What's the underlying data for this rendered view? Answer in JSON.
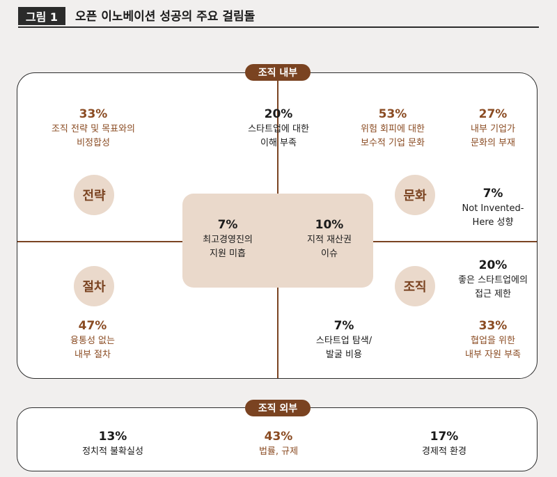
{
  "header": {
    "label": "그림 1",
    "title": "오픈 이노베이션 성공의 주요 걸림돌"
  },
  "inner": {
    "label": "조직 내부",
    "circles": {
      "strategy": "전략",
      "culture": "문화",
      "procedure": "절차",
      "organization": "조직"
    },
    "stats": {
      "strategy_mismatch": {
        "pct": "33%",
        "desc": "조직 전략 및 목표와의\n비정합성"
      },
      "startup_understanding": {
        "pct": "20%",
        "desc": "스타트업에 대한\n이해 부족"
      },
      "risk_avoidance": {
        "pct": "53%",
        "desc": "위험 회피에 대한\n보수적 기업 문화"
      },
      "no_corporate_culture": {
        "pct": "27%",
        "desc": "내부 기업가\n문화의 부재"
      },
      "nih": {
        "pct": "7%",
        "desc": "Not Invented-\nHere 성향"
      },
      "exec_commitment": {
        "pct": "7%",
        "desc": "최고경영진의\n지원 미흡"
      },
      "ip_issue": {
        "pct": "10%",
        "desc": "지적 재산권\n이슈"
      },
      "good_startup_access": {
        "pct": "20%",
        "desc": "좋은 스타트업에의\n접근 제한"
      },
      "flexibility": {
        "pct": "47%",
        "desc": "융통성 없는\n내부 절차"
      },
      "scouting_cost": {
        "pct": "7%",
        "desc": "스타트업 탐색/\n발굴 비용"
      },
      "resources": {
        "pct": "33%",
        "desc": "협업을 위한\n내부 자원 부족"
      }
    }
  },
  "outer": {
    "label": "조직 외부",
    "stats": {
      "political": {
        "pct": "13%",
        "desc": "정치적 불확실성"
      },
      "legal": {
        "pct": "43%",
        "desc": "법률, 규제"
      },
      "economic": {
        "pct": "17%",
        "desc": "경제적 환경"
      }
    }
  },
  "colors": {
    "accent": "#7a4321",
    "circle_fill": "#ead9cb",
    "highlight_text": "#8a4b22",
    "background": "#f1efee"
  }
}
